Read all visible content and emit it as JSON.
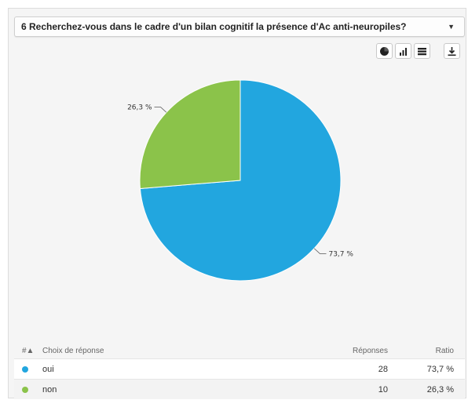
{
  "question": {
    "title": "6 Recherchez-vous dans le cadre d'un bilan cognitif la présence d'Ac anti-neuropiles?"
  },
  "toolbar": {
    "buttons": [
      {
        "icon": "pie-chart-icon"
      },
      {
        "icon": "bar-chart-icon"
      },
      {
        "icon": "table-icon"
      },
      {
        "icon": "download-icon"
      }
    ]
  },
  "chart_data": {
    "type": "pie",
    "slices": [
      {
        "label": "oui",
        "value": 73.7,
        "display": "73,7 %",
        "color": "#22a6df"
      },
      {
        "label": "non",
        "value": 26.3,
        "display": "26,3 %",
        "color": "#8bc34a"
      }
    ]
  },
  "table": {
    "headers": {
      "hash": "#▲",
      "choice": "Choix de réponse",
      "responses": "Réponses",
      "ratio": "Ratio"
    },
    "rows": [
      {
        "choice": "oui",
        "responses": "28",
        "ratio": "73,7 %",
        "color": "#22a6df"
      },
      {
        "choice": "non",
        "responses": "10",
        "ratio": "26,3 %",
        "color": "#8bc34a"
      }
    ]
  }
}
